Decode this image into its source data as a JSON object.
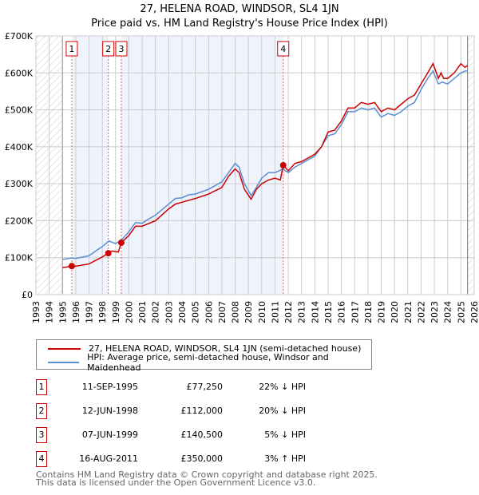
{
  "title": "27, HELENA ROAD, WINDSOR, SL4 1JN",
  "subtitle": "Price paid vs. HM Land Registry's House Price Index (HPI)",
  "chart_data": {
    "type": "line",
    "xlim": [
      1993,
      2026
    ],
    "ylim": [
      0,
      700000
    ],
    "x_ticks": [
      1993,
      1994,
      1995,
      1996,
      1997,
      1998,
      1999,
      2000,
      2001,
      2002,
      2003,
      2004,
      2005,
      2006,
      2007,
      2008,
      2009,
      2010,
      2011,
      2012,
      2013,
      2014,
      2015,
      2016,
      2017,
      2018,
      2019,
      2020,
      2021,
      2022,
      2023,
      2024,
      2025,
      2026
    ],
    "y_ticks": [
      {
        "v": 0,
        "label": "£0"
      },
      {
        "v": 100000,
        "label": "£100K"
      },
      {
        "v": 200000,
        "label": "£200K"
      },
      {
        "v": 300000,
        "label": "£300K"
      },
      {
        "v": 400000,
        "label": "£400K"
      },
      {
        "v": 500000,
        "label": "£500K"
      },
      {
        "v": 600000,
        "label": "£600K"
      },
      {
        "v": 700000,
        "label": "£700K"
      }
    ],
    "series": [
      {
        "name": "27, HELENA ROAD, WINDSOR, SL4 1JN (semi-detached house)",
        "color": "#cc0000",
        "points": [
          [
            1995,
            73000
          ],
          [
            1995.7,
            77000
          ],
          [
            1996,
            77000
          ],
          [
            1997,
            83000
          ],
          [
            1998,
            102000
          ],
          [
            1998.45,
            112000
          ],
          [
            1998.7,
            118000
          ],
          [
            1999.2,
            115000
          ],
          [
            1999.43,
            140500
          ],
          [
            2000,
            160000
          ],
          [
            2000.5,
            185000
          ],
          [
            2001,
            185000
          ],
          [
            2002,
            200000
          ],
          [
            2003,
            232000
          ],
          [
            2003.5,
            245000
          ],
          [
            2004,
            250000
          ],
          [
            2005,
            260000
          ],
          [
            2006,
            272000
          ],
          [
            2007,
            290000
          ],
          [
            2007.5,
            320000
          ],
          [
            2008,
            340000
          ],
          [
            2008.3,
            330000
          ],
          [
            2008.7,
            285000
          ],
          [
            2009.2,
            258000
          ],
          [
            2009.6,
            285000
          ],
          [
            2010,
            300000
          ],
          [
            2010.5,
            310000
          ],
          [
            2011,
            315000
          ],
          [
            2011.4,
            310000
          ],
          [
            2011.62,
            350000
          ],
          [
            2012,
            335000
          ],
          [
            2012.5,
            355000
          ],
          [
            2013,
            360000
          ],
          [
            2014,
            380000
          ],
          [
            2014.5,
            400000
          ],
          [
            2015,
            440000
          ],
          [
            2015.5,
            445000
          ],
          [
            2016,
            470000
          ],
          [
            2016.5,
            505000
          ],
          [
            2017,
            505000
          ],
          [
            2017.5,
            520000
          ],
          [
            2018,
            515000
          ],
          [
            2018.5,
            520000
          ],
          [
            2019,
            495000
          ],
          [
            2019.5,
            505000
          ],
          [
            2020,
            500000
          ],
          [
            2020.5,
            515000
          ],
          [
            2021,
            530000
          ],
          [
            2021.5,
            540000
          ],
          [
            2022,
            570000
          ],
          [
            2022.5,
            600000
          ],
          [
            2022.9,
            625000
          ],
          [
            2023.3,
            585000
          ],
          [
            2023.5,
            600000
          ],
          [
            2023.7,
            585000
          ],
          [
            2024,
            585000
          ],
          [
            2024.5,
            600000
          ],
          [
            2025,
            625000
          ],
          [
            2025.3,
            615000
          ],
          [
            2025.5,
            620000
          ]
        ]
      },
      {
        "name": "HPI: Average price, semi-detached house, Windsor and Maidenhead",
        "color": "#5b8fd4",
        "points": [
          [
            1995,
            95000
          ],
          [
            1995.7,
            99000
          ],
          [
            1996,
            98000
          ],
          [
            1997,
            105000
          ],
          [
            1997.5,
            118000
          ],
          [
            1998,
            130000
          ],
          [
            1998.5,
            145000
          ],
          [
            1999,
            138000
          ],
          [
            1999.5,
            150000
          ],
          [
            2000,
            170000
          ],
          [
            2000.5,
            195000
          ],
          [
            2001,
            193000
          ],
          [
            2001.5,
            205000
          ],
          [
            2002,
            215000
          ],
          [
            2002.5,
            230000
          ],
          [
            2003,
            245000
          ],
          [
            2003.5,
            260000
          ],
          [
            2004,
            262000
          ],
          [
            2004.5,
            270000
          ],
          [
            2005,
            272000
          ],
          [
            2006,
            285000
          ],
          [
            2007,
            305000
          ],
          [
            2007.5,
            330000
          ],
          [
            2008,
            355000
          ],
          [
            2008.3,
            345000
          ],
          [
            2008.7,
            300000
          ],
          [
            2009.2,
            268000
          ],
          [
            2009.6,
            290000
          ],
          [
            2010,
            315000
          ],
          [
            2010.5,
            330000
          ],
          [
            2011,
            330000
          ],
          [
            2011.6,
            340000
          ],
          [
            2012,
            330000
          ],
          [
            2012.5,
            345000
          ],
          [
            2013,
            355000
          ],
          [
            2014,
            375000
          ],
          [
            2014.5,
            400000
          ],
          [
            2015,
            430000
          ],
          [
            2015.5,
            435000
          ],
          [
            2016,
            460000
          ],
          [
            2016.5,
            495000
          ],
          [
            2017,
            495000
          ],
          [
            2017.5,
            505000
          ],
          [
            2018,
            500000
          ],
          [
            2018.5,
            505000
          ],
          [
            2019,
            480000
          ],
          [
            2019.5,
            490000
          ],
          [
            2020,
            485000
          ],
          [
            2020.5,
            495000
          ],
          [
            2021,
            510000
          ],
          [
            2021.5,
            520000
          ],
          [
            2022,
            555000
          ],
          [
            2022.5,
            585000
          ],
          [
            2022.9,
            605000
          ],
          [
            2023.3,
            570000
          ],
          [
            2023.6,
            575000
          ],
          [
            2024,
            570000
          ],
          [
            2024.5,
            585000
          ],
          [
            2025,
            600000
          ],
          [
            2025.3,
            605000
          ],
          [
            2025.5,
            605000
          ]
        ]
      }
    ],
    "sales": [
      {
        "n": "1",
        "x": 1995.7,
        "date": "11-SEP-1995",
        "price": 77250,
        "price_label": "£77,250",
        "hpi": "22% ↓ HPI"
      },
      {
        "n": "2",
        "x": 1998.45,
        "date": "12-JUN-1998",
        "price": 112000,
        "price_label": "£112,000",
        "hpi": "20% ↓ HPI"
      },
      {
        "n": "3",
        "x": 1999.43,
        "date": "07-JUN-1999",
        "price": 140500,
        "price_label": "£140,500",
        "hpi": "5% ↓ HPI"
      },
      {
        "n": "4",
        "x": 2011.62,
        "date": "16-AUG-2011",
        "price": 350000,
        "price_label": "£350,000",
        "hpi": "3% ↑ HPI"
      }
    ]
  },
  "footer": [
    "Contains HM Land Registry data © Crown copyright and database right 2025.",
    "This data is licensed under the Open Government Licence v3.0."
  ]
}
